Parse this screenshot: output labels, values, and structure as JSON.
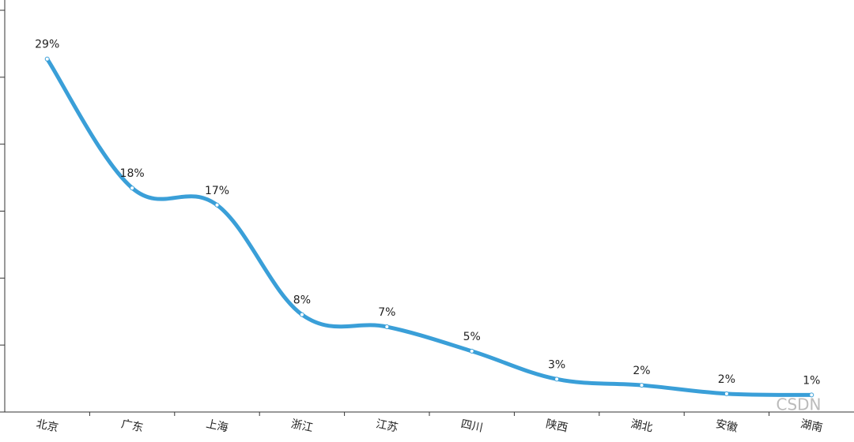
{
  "chart_data": {
    "type": "line",
    "categories": [
      "北京",
      "广东",
      "上海",
      "浙江",
      "江苏",
      "四川",
      "陕西",
      "湖北",
      "安徽",
      "湖南"
    ],
    "values": [
      29,
      18.4,
      17,
      8,
      7,
      5,
      2.7,
      2.2,
      1.5,
      1.4
    ],
    "value_labels": [
      "29%",
      "18%",
      "17%",
      "8%",
      "7%",
      "5%",
      "3%",
      "2%",
      "2%",
      "1%"
    ],
    "color": "#3a9fd8",
    "smooth": true,
    "ylim": [
      0,
      33
    ],
    "yticks": [
      0,
      5.5,
      11,
      16.5,
      22,
      27.5,
      33
    ],
    "watermark": "CSDN"
  }
}
